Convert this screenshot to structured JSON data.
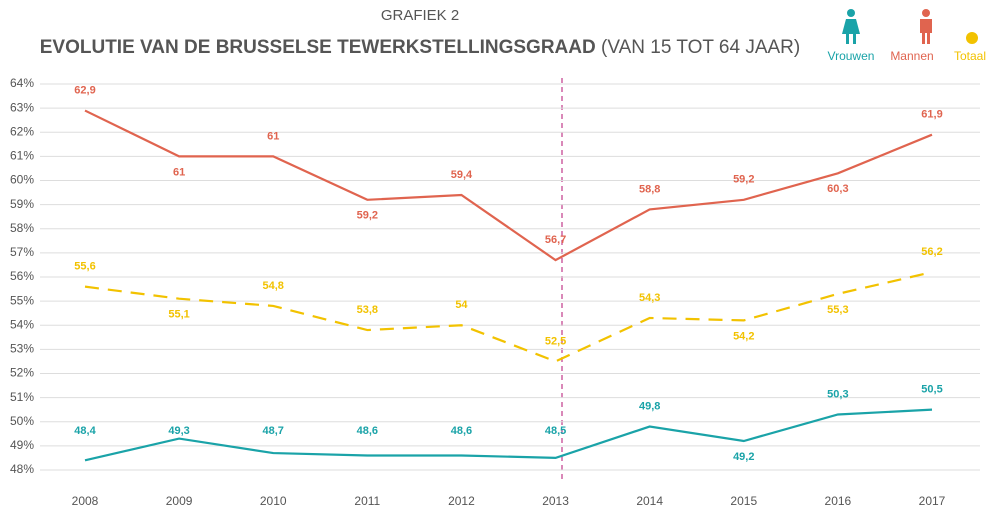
{
  "chart_data": {
    "type": "line",
    "subtitle": "GRAFIEK 2",
    "title": "EVOLUTIE VAN DE BRUSSELSE TEWERKSTELLINGSGRAAD",
    "title_suffix": "(VAN 15 TOT 64 JAAR)",
    "categories": [
      "2008",
      "2009",
      "2010",
      "2011",
      "2012",
      "2013",
      "2014",
      "2015",
      "2016",
      "2017"
    ],
    "series": [
      {
        "name": "Vrouwen",
        "color": "#1aa3a8",
        "dashed": false,
        "values": [
          48.4,
          49.3,
          48.7,
          48.6,
          48.6,
          48.5,
          49.8,
          49.2,
          50.3,
          50.5
        ],
        "value_labels": [
          "48,4",
          "49,3",
          "48,7",
          "48,6",
          "48,6",
          "48,5",
          "49,8",
          "49,2",
          "50,3",
          "50,5"
        ]
      },
      {
        "name": "Mannen",
        "color": "#e0644f",
        "dashed": false,
        "values": [
          62.9,
          61,
          61,
          59.2,
          59.4,
          56.7,
          58.8,
          59.2,
          60.3,
          61.9
        ],
        "value_labels": [
          "62,9",
          "61",
          "61",
          "59,2",
          "59,4",
          "56,7",
          "58,8",
          "59,2",
          "60,3",
          "61,9"
        ]
      },
      {
        "name": "Totaal",
        "color": "#f2c200",
        "dashed": true,
        "values": [
          55.6,
          55.1,
          54.8,
          53.8,
          54,
          52.5,
          54.3,
          54.2,
          55.3,
          56.2
        ],
        "value_labels": [
          "55,6",
          "55,1",
          "54,8",
          "53,8",
          "54",
          "52,5",
          "54,3",
          "54,2",
          "55,3",
          "56,2"
        ]
      }
    ],
    "ylim": [
      47.5,
      64.25
    ],
    "yticks": [
      {
        "value": 48,
        "label": "48%"
      },
      {
        "value": 49,
        "label": "49%"
      },
      {
        "value": 50,
        "label": "50%"
      },
      {
        "value": 51,
        "label": "51%"
      },
      {
        "value": 52,
        "label": "52%"
      },
      {
        "value": 53,
        "label": "53%"
      },
      {
        "value": 54,
        "label": "54%"
      },
      {
        "value": 55,
        "label": "55%"
      },
      {
        "value": 56,
        "label": "56%"
      },
      {
        "value": 57,
        "label": "57%"
      },
      {
        "value": 58,
        "label": "58%"
      },
      {
        "value": 59,
        "label": "59%"
      },
      {
        "value": 60,
        "label": "60%"
      },
      {
        "value": 61,
        "label": "61%"
      },
      {
        "value": 62,
        "label": "62%"
      },
      {
        "value": 63,
        "label": "63%"
      },
      {
        "value": 64,
        "label": "64%"
      }
    ],
    "grid": true
  }
}
